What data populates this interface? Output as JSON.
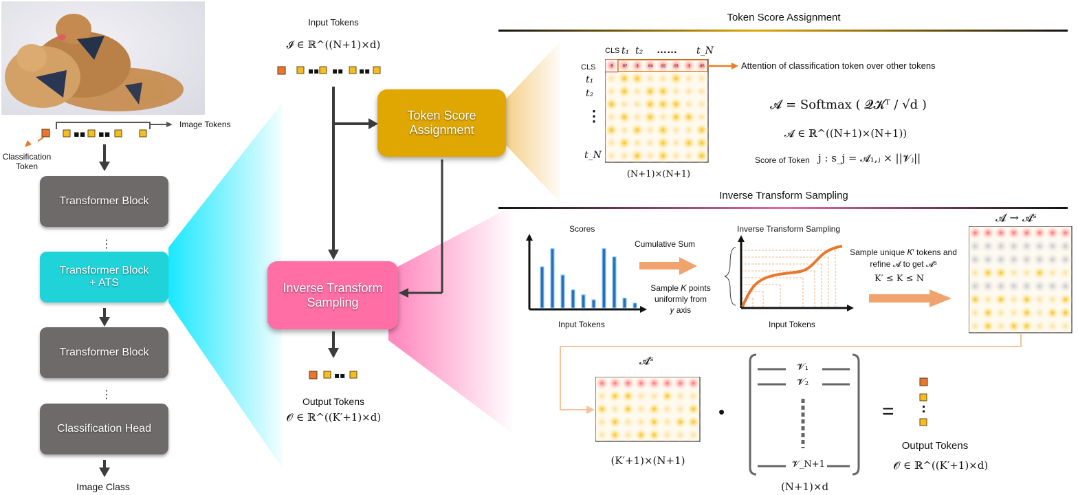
{
  "left": {
    "image_tokens": "Image Tokens",
    "classification_token": "Classification\nToken",
    "block1": "Transformer Block",
    "block2": "Transformer Block\n+ ATS",
    "block3": "Transformer Block",
    "head": "Classification Head",
    "output": "Image Class"
  },
  "middle": {
    "input_title": "Input Tokens",
    "input_math": "𝓘 ∈ ℝ^((N+1)×d)",
    "score_box": "Token Score\nAssignment",
    "its_box": "Inverse Transform\nSampling",
    "output_title": "Output Tokens",
    "output_math": "𝓞 ∈ ℝ^((K′+1)×d)"
  },
  "score_section": {
    "title": "Token Score Assignment",
    "col_labels": [
      "CLS",
      "t₁",
      "t₂",
      "……",
      "t_N"
    ],
    "row_labels": [
      "CLS",
      "t₁",
      "t₂",
      "⋮",
      "t_N"
    ],
    "first_row_values": [
      ".5",
      ".07",
      ".1",
      ".04",
      ".02",
      ".01",
      ".1",
      ".05"
    ],
    "dim_label": "(N+1)×(N+1)",
    "attention_note": "Attention of classification token over other tokens",
    "eq1": "𝓐 = Softmax ( 𝓠𝓚ᵀ / √d )",
    "eq2": "𝓐 ∈ ℝ^((N+1)×(N+1))",
    "score_label": "Score of Token",
    "score_eq": "j :  s_j = 𝓐₁,ⱼ × ||𝓥ⱼ||"
  },
  "its_section": {
    "title": "Inverse Transform Sampling",
    "scores_label": "Scores",
    "input_tokens_1": "Input Tokens",
    "cumsum": "Cumulative Sum",
    "sample_k": "Sample 𝐾 points\nuniformly from\n𝑦 axis",
    "its_label": "Inverse Transform Sampling",
    "input_tokens_2": "Input Tokens",
    "sample_unique": "Sample unique 𝐾′ tokens and\nrefine  𝓐  to get  𝓐ˢ",
    "k_ineq": "K′ ≤ K ≤ N",
    "a_to_as": "𝓐 → 𝓐ˢ",
    "as_label": "𝓐ˢ",
    "as_dim": "(K′+1)×(N+1)",
    "v_rows": [
      "𝓥₁",
      "𝓥₂",
      "𝓥_N+1"
    ],
    "v_dim": "(N+1)×d",
    "equals": "=",
    "dot": "•",
    "out_title": "Output Tokens",
    "out_math": "𝓞 ∈ ℝ^((K′+1)×d)"
  },
  "chart_data": {
    "type": "bar",
    "title": "Scores",
    "xlabel": "Input Tokens",
    "values": [
      0.5,
      0.72,
      0.4,
      0.22,
      0.16,
      0.1,
      0.72,
      0.62,
      0.12,
      0.06
    ]
  },
  "colors": {
    "gold": "#e0a702",
    "pink": "#ff6fa6",
    "cyan": "#1fd3d8",
    "gray_block": "#6e6a69",
    "token_orange": "#e8762d",
    "token_yellow": "#f5bd1f",
    "arrow_orange": "#f0a36c"
  }
}
